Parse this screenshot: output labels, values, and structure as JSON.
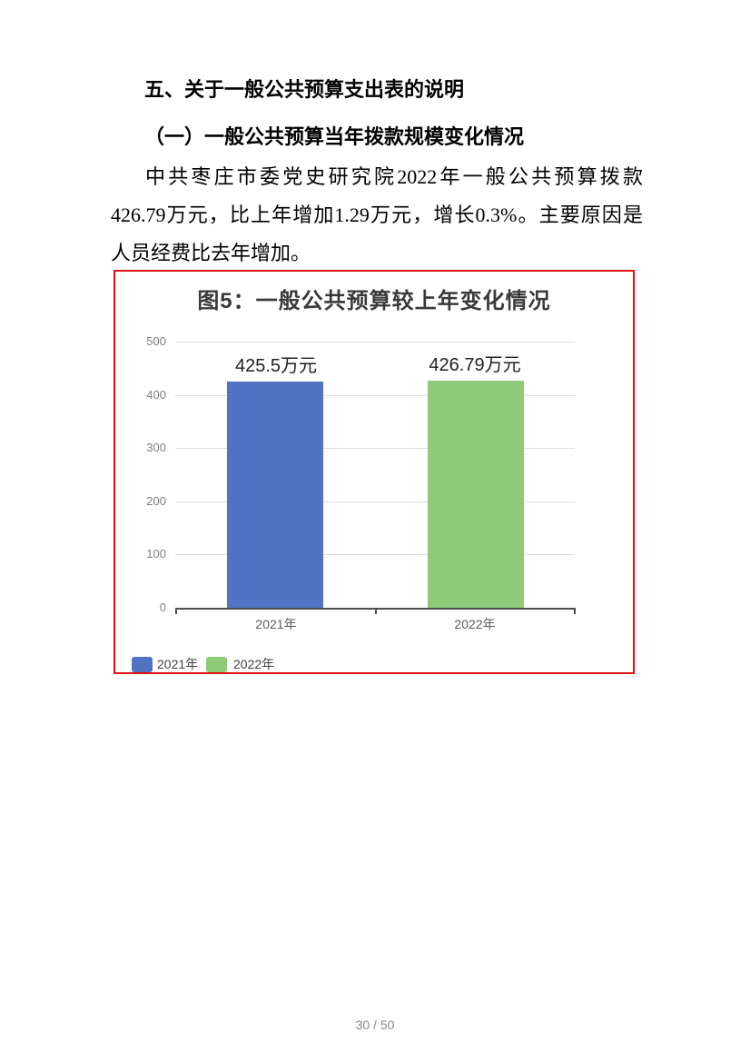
{
  "headings": {
    "section": "五、关于一般公共预算支出表的说明",
    "subsection": "（一）一般公共预算当年拨款规模变化情况"
  },
  "paragraph": {
    "line1": "中共枣庄市委党史研究院2022年一般公共预算拨款",
    "line2": "426.79万元，比上年增加1.29万元，增长0.3%。主要原因是",
    "line3": "人员经费比去年增加。"
  },
  "chart": {
    "title": "图5：一般公共预算较上年变化情况",
    "border_color": "#dd1111",
    "y_ticks": [
      "500",
      "400",
      "300",
      "200",
      "100",
      "0"
    ],
    "x_labels": [
      "2021年",
      "2022年"
    ],
    "bar_labels": [
      "425.5万元",
      "426.79万元"
    ],
    "legend": [
      {
        "label": "2021年",
        "color": "#5273c4"
      },
      {
        "label": "2022年",
        "color": "#8fca78"
      }
    ]
  },
  "chart_data": {
    "type": "bar",
    "title": "图5：一般公共预算较上年变化情况",
    "categories": [
      "2021年",
      "2022年"
    ],
    "values": [
      425.5,
      426.79
    ],
    "data_labels": [
      "425.5万元",
      "426.79万元"
    ],
    "series_colors": [
      "#5273c4",
      "#8fca78"
    ],
    "unit": "万元",
    "ylim": [
      0,
      500
    ],
    "y_ticks": [
      0,
      100,
      200,
      300,
      400,
      500
    ],
    "grid": true,
    "legend_position": "bottom-left",
    "legend_entries": [
      "2021年",
      "2022年"
    ]
  },
  "footer": {
    "page_number": "30 / 50"
  }
}
